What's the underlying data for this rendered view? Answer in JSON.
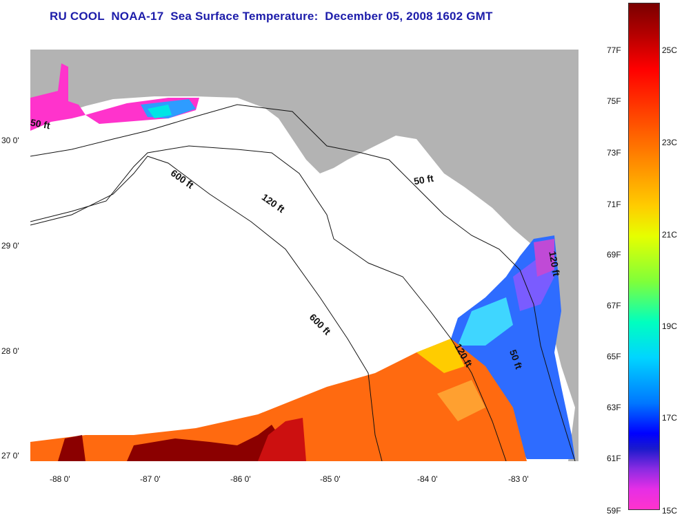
{
  "title": "RU COOL  NOAA-17  Sea Surface Temperature:  December 05, 2008 1602 GMT",
  "map": {
    "lat_labels": [
      "30 0'",
      "29 0'",
      "28 0'",
      "27 0'"
    ],
    "lon_labels": [
      "-88 0'",
      "-87 0'",
      "-86 0'",
      "-85 0'",
      "-84 0'",
      "-83 0'"
    ],
    "contour_labels": [
      "50 ft",
      "600 ft",
      "120 ft",
      "50 ft",
      "600 ft",
      "120 ft",
      "50 ft",
      "120 ft"
    ],
    "colors": {
      "land": "#b3b3b3",
      "cloud": "#ffffff",
      "warm": "#ff6a10",
      "hot": "#8b0000",
      "cold": "#2e6cff",
      "coldest": "#ff33cc"
    }
  },
  "colorbar": {
    "fahrenheit": [
      "77F",
      "75F",
      "73F",
      "71F",
      "69F",
      "67F",
      "65F",
      "63F",
      "61F",
      "59F"
    ],
    "celsius": [
      "25C",
      "23C",
      "21C",
      "19C",
      "17C",
      "15C"
    ]
  }
}
